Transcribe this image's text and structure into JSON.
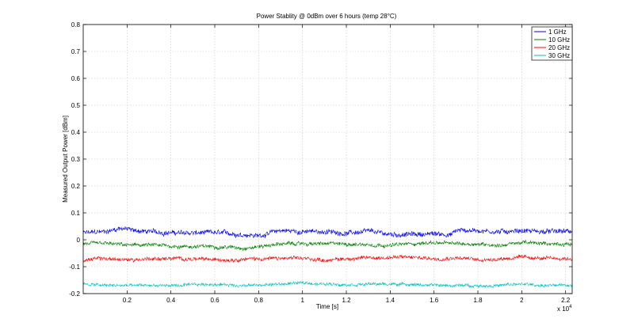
{
  "chart_data": {
    "type": "line",
    "title": "Power Stablity @ 0dBm over 6 hours (temp 28°C)",
    "xlabel": "Time [s]",
    "ylabel": "Measured Output Power [dBm]",
    "x_exponent_label": "x 10",
    "x_exponent_power": "4",
    "xlim": [
      0,
      2.23
    ],
    "ylim": [
      -0.2,
      0.8
    ],
    "xticks": [
      0.2,
      0.4,
      0.6,
      0.8,
      1,
      1.2,
      1.4,
      1.6,
      1.8,
      2,
      2.2
    ],
    "xtick_labels": [
      "0.2",
      "0.4",
      "0.6",
      "0.8",
      "1",
      "1.2",
      "1.4",
      "1.6",
      "1.8",
      "2",
      "2.2"
    ],
    "yticks": [
      -0.2,
      -0.1,
      0,
      0.1,
      0.2,
      0.3,
      0.4,
      0.5,
      0.6,
      0.7,
      0.8
    ],
    "ytick_labels": [
      "-0.2",
      "-0.1",
      "0",
      "0.1",
      "0.2",
      "0.3",
      "0.4",
      "0.5",
      "0.6",
      "0.7",
      "0.8"
    ],
    "grid": true,
    "legend_position": "top-right",
    "series": [
      {
        "name": "1 GHz",
        "color": "#0000ff",
        "noise": 0.008,
        "x": [
          0,
          0.1,
          0.15,
          0.18,
          0.22,
          0.3,
          0.45,
          0.6,
          0.75,
          0.8,
          0.9,
          1.0,
          1.1,
          1.2,
          1.3,
          1.4,
          1.5,
          1.6,
          1.68,
          1.7,
          1.8,
          1.9,
          2.0,
          2.1,
          2.23
        ],
        "y": [
          0.025,
          0.03,
          0.04,
          0.045,
          0.035,
          0.03,
          0.025,
          0.025,
          0.02,
          0.015,
          0.035,
          0.03,
          0.03,
          0.025,
          0.03,
          0.02,
          0.02,
          0.022,
          0.02,
          0.035,
          0.035,
          0.03,
          0.035,
          0.03,
          0.03
        ]
      },
      {
        "name": "10 GHz",
        "color": "#008000",
        "noise": 0.006,
        "x": [
          0,
          0.1,
          0.2,
          0.3,
          0.45,
          0.6,
          0.75,
          0.9,
          1.0,
          1.1,
          1.2,
          1.4,
          1.5,
          1.6,
          1.7,
          1.8,
          1.9,
          2.0,
          2.1,
          2.23
        ],
        "y": [
          -0.015,
          -0.015,
          -0.02,
          -0.02,
          -0.025,
          -0.025,
          -0.03,
          -0.015,
          -0.015,
          -0.015,
          -0.015,
          -0.02,
          -0.015,
          -0.01,
          -0.015,
          -0.015,
          -0.02,
          -0.01,
          -0.015,
          -0.015
        ]
      },
      {
        "name": "20 GHz",
        "color": "#ff0000",
        "noise": 0.006,
        "x": [
          0,
          0.1,
          0.2,
          0.3,
          0.45,
          0.6,
          0.75,
          0.9,
          1.0,
          1.1,
          1.2,
          1.4,
          1.5,
          1.6,
          1.7,
          1.8,
          1.9,
          2.0,
          2.1,
          2.23
        ],
        "y": [
          -0.075,
          -0.07,
          -0.075,
          -0.07,
          -0.07,
          -0.075,
          -0.07,
          -0.07,
          -0.07,
          -0.075,
          -0.07,
          -0.065,
          -0.065,
          -0.07,
          -0.065,
          -0.075,
          -0.07,
          -0.065,
          -0.07,
          -0.07
        ]
      },
      {
        "name": "30 GHz",
        "color": "#00bfbf",
        "noise": 0.005,
        "x": [
          0,
          0.1,
          0.2,
          0.3,
          0.45,
          0.6,
          0.75,
          0.9,
          1.0,
          1.1,
          1.2,
          1.4,
          1.5,
          1.6,
          1.7,
          1.8,
          1.9,
          2.0,
          2.1,
          2.23
        ],
        "y": [
          -0.165,
          -0.17,
          -0.17,
          -0.17,
          -0.17,
          -0.165,
          -0.17,
          -0.165,
          -0.16,
          -0.165,
          -0.165,
          -0.165,
          -0.165,
          -0.17,
          -0.17,
          -0.17,
          -0.17,
          -0.165,
          -0.17,
          -0.17
        ]
      }
    ]
  }
}
